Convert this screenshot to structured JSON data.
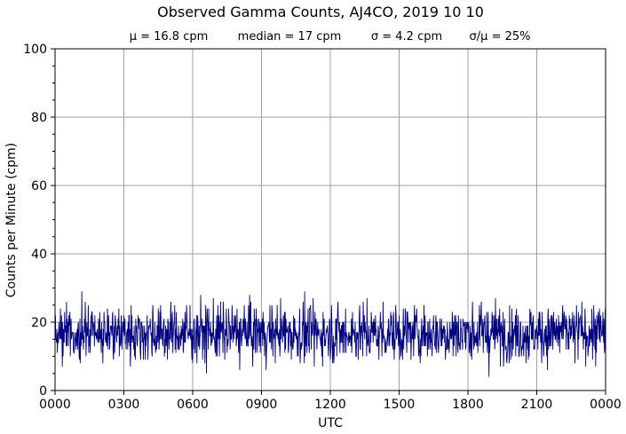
{
  "chart_data": {
    "type": "line",
    "title": "Observed Gamma Counts, AJ4CO, 2019 10 10",
    "stats": [
      "μ = 16.8 cpm",
      "median = 17 cpm",
      "σ = 4.2 cpm",
      "σ/μ = 25%"
    ],
    "xlabel": "UTC",
    "ylabel": "Counts per Minute (cpm)",
    "xlim": [
      0,
      1440
    ],
    "ylim": [
      0,
      100
    ],
    "x_ticks": [
      {
        "value": 0,
        "label": "0000"
      },
      {
        "value": 180,
        "label": "0300"
      },
      {
        "value": 360,
        "label": "0600"
      },
      {
        "value": 540,
        "label": "0900"
      },
      {
        "value": 720,
        "label": "1200"
      },
      {
        "value": 900,
        "label": "1500"
      },
      {
        "value": 1080,
        "label": "1800"
      },
      {
        "value": 1260,
        "label": "2100"
      },
      {
        "value": 1440,
        "label": "0000"
      }
    ],
    "y_ticks": [
      {
        "value": 0,
        "label": "0"
      },
      {
        "value": 20,
        "label": "20"
      },
      {
        "value": 40,
        "label": "40"
      },
      {
        "value": 60,
        "label": "60"
      },
      {
        "value": 80,
        "label": "80"
      },
      {
        "value": 100,
        "label": "100"
      }
    ],
    "y_minor_step": 5,
    "grid": true,
    "series_color": "#000080",
    "grid_color": "#a0a0a0",
    "series": [
      {
        "x_unit": "minutes since 0000 UTC",
        "values_summary": "one count per minute, 1440 points, fluctuating ~5–30 cpm around 17",
        "values": []
      }
    ]
  }
}
